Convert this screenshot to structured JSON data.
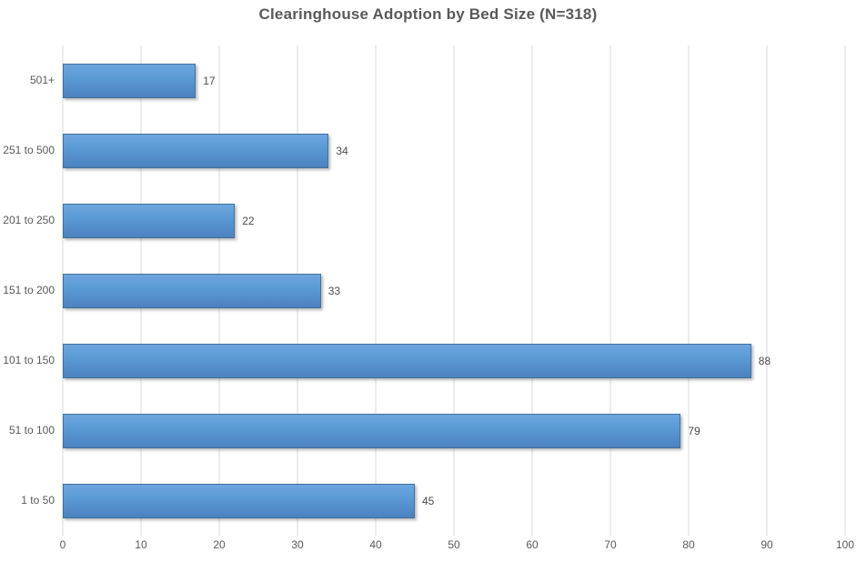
{
  "chart_data": {
    "type": "bar",
    "orientation": "horizontal",
    "title": "Clearinghouse Adoption by Bed Size (N=318)",
    "categories": [
      "501+",
      "251 to 500",
      "201 to 250",
      "151 to 200",
      "101 to 150",
      "51 to 100",
      "1 to 50"
    ],
    "values": [
      17,
      34,
      22,
      33,
      88,
      79,
      45
    ],
    "xlabel": "",
    "ylabel": "",
    "xlim": [
      0,
      100
    ],
    "xticks": [
      0,
      10,
      20,
      30,
      40,
      50,
      60,
      70,
      80,
      90,
      100
    ],
    "grid": "vertical",
    "legend": "none",
    "colors": {
      "bar_fill": "#5b9bd5",
      "bar_fill_top": "#6ea6de",
      "bar_fill_bottom": "#4c81bf",
      "bar_border": "#41719c",
      "gridline": "#d9d9d9",
      "title_text": "#595959",
      "axis_text": "#595959",
      "value_text": "#4a4a4a",
      "background": "#ffffff"
    }
  }
}
